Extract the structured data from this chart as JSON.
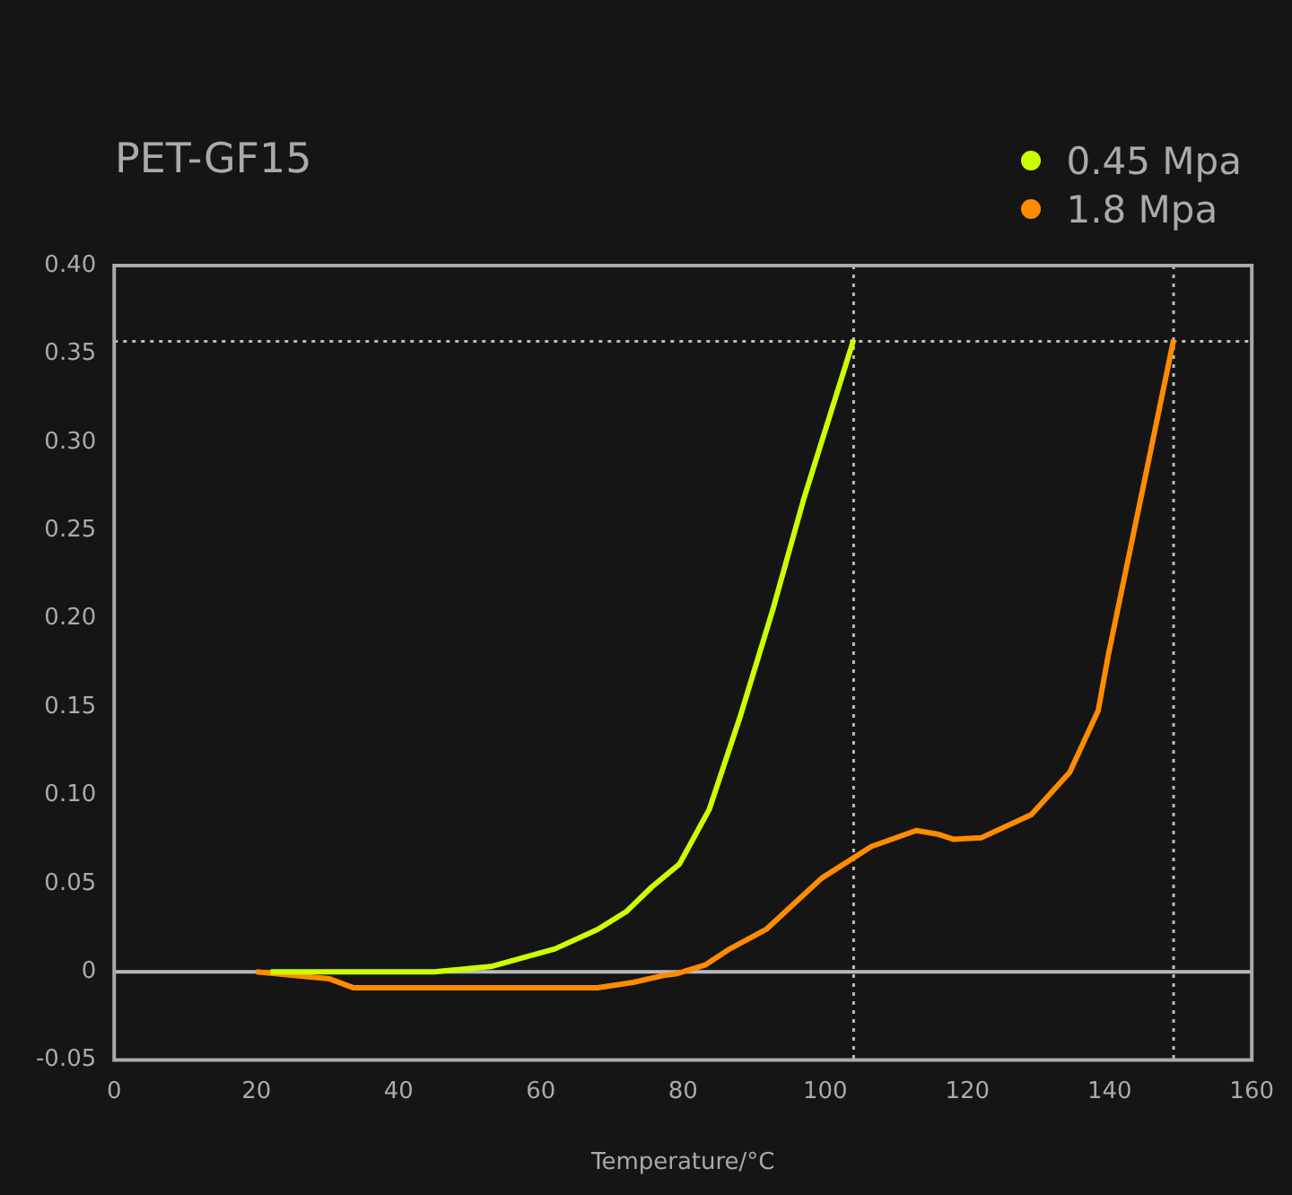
{
  "chart_data": {
    "type": "line",
    "title": "PET-GF15",
    "xlabel": "Temperature/°C",
    "xlim": [
      0,
      160
    ],
    "xticks": [
      0,
      20,
      40,
      60,
      80,
      100,
      120,
      140,
      160
    ],
    "ylim": [
      -0.05,
      0.4
    ],
    "yticks": [
      {
        "value": 0.4,
        "label": "0.40"
      },
      0.35,
      {
        "value": 0.3,
        "label": "0.30"
      },
      0.25,
      {
        "value": 0.2,
        "label": "0.20"
      },
      0.15,
      {
        "value": 0.1,
        "label": "0.10"
      },
      0.05,
      0,
      -0.05
    ],
    "grid": false,
    "legend": "top right",
    "marker": "none",
    "line_style": "solid",
    "series": [
      {
        "name": "0.45 Mpa",
        "color": "#ccff00",
        "x": [
          22,
          45,
          53,
          62,
          68,
          72,
          75.6,
          79.5,
          83.7,
          88,
          92.7,
          97,
          104
        ],
        "values": [
          0,
          0,
          0.003,
          0.013,
          0.024,
          0.034,
          0.048,
          0.061,
          0.092,
          0.144,
          0.206,
          0.268,
          0.358
        ]
      },
      {
        "name": "1.8 Mpa",
        "color": "#ff8c00",
        "x": [
          20,
          30.3,
          33.6,
          68,
          73,
          77.4,
          79.2,
          83.2,
          86.6,
          91.7,
          99.5,
          106.5,
          112.8,
          115.8,
          118.1,
          122,
          129,
          134.4,
          138.4,
          139.8,
          144.9,
          149
        ],
        "values": [
          0,
          -0.004,
          -0.009,
          -0.009,
          -0.006,
          -0.002,
          -0.001,
          0.004,
          0.013,
          0.024,
          0.053,
          0.071,
          0.08,
          0.078,
          0.075,
          0.076,
          0.089,
          0.113,
          0.148,
          0.179,
          0.278,
          0.358
        ]
      }
    ],
    "ref_lines": [
      {
        "axis": "y",
        "value": 0,
        "color": "#bbbbbb",
        "line_style": "solid"
      },
      {
        "axis": "y",
        "value": 0.357,
        "color": "#bbbbbb",
        "line_style": "dotted"
      },
      {
        "axis": "x",
        "value": 104,
        "color": "#bbbbbb",
        "line_style": "dotted"
      },
      {
        "axis": "x",
        "value": 149,
        "color": "#bbbbbb",
        "line_style": "dotted"
      }
    ]
  }
}
